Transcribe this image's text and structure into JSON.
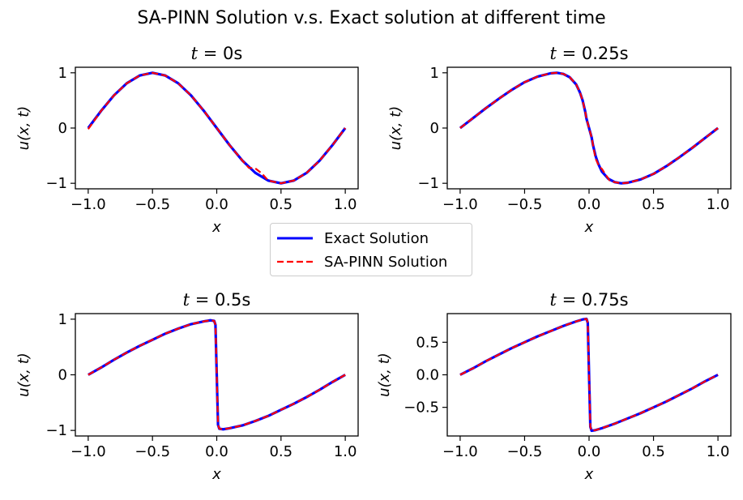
{
  "figure": {
    "suptitle": "SA-PINN Solution v.s. Exact solution at different time",
    "legend": {
      "placement": "center",
      "entries": [
        {
          "label": "Exact Solution",
          "color": "#0000ff",
          "style": "solid"
        },
        {
          "label": "SA-PINN Solution",
          "color": "#ff0000",
          "style": "dashed"
        }
      ]
    }
  },
  "chart_data": [
    {
      "type": "line",
      "title_prefix": "t = ",
      "title_value": "0s",
      "xlabel": "x",
      "ylabel": "u(x, t)",
      "xlim": [
        -1.1,
        1.1
      ],
      "ylim": [
        -1.1,
        1.1
      ],
      "xticks": [
        -1.0,
        -0.5,
        0.0,
        0.5,
        1.0
      ],
      "xtick_labels": [
        "−1.0",
        "−0.5",
        "0.0",
        "0.5",
        "1.0"
      ],
      "yticks": [
        -1,
        0,
        1
      ],
      "ytick_labels": [
        "−1",
        "0",
        "1"
      ],
      "series": [
        {
          "name": "Exact Solution",
          "color": "#0000ff",
          "x": [
            -1.0,
            -0.9,
            -0.8,
            -0.7,
            -0.6,
            -0.5,
            -0.4,
            -0.3,
            -0.2,
            -0.1,
            0.0,
            0.1,
            0.2,
            0.3,
            0.4,
            0.5,
            0.6,
            0.7,
            0.8,
            0.9,
            1.0
          ],
          "y": [
            0.0,
            0.31,
            0.59,
            0.81,
            0.95,
            1.0,
            0.95,
            0.81,
            0.59,
            0.31,
            0.0,
            -0.31,
            -0.59,
            -0.81,
            -0.95,
            -1.0,
            -0.95,
            -0.81,
            -0.59,
            -0.31,
            0.0
          ]
        },
        {
          "name": "SA-PINN Solution",
          "color": "#ff0000",
          "x": [
            -1.0,
            -0.9,
            -0.8,
            -0.7,
            -0.6,
            -0.5,
            -0.4,
            -0.3,
            -0.2,
            -0.1,
            0.0,
            0.1,
            0.2,
            0.25,
            0.3,
            0.35,
            0.4,
            0.5,
            0.6,
            0.7,
            0.8,
            0.9,
            1.0
          ],
          "y": [
            -0.02,
            0.31,
            0.59,
            0.81,
            0.95,
            1.0,
            0.95,
            0.81,
            0.59,
            0.31,
            0.0,
            -0.31,
            -0.59,
            -0.72,
            -0.73,
            -0.82,
            -0.95,
            -1.0,
            -0.95,
            -0.81,
            -0.59,
            -0.31,
            0.0
          ]
        }
      ]
    },
    {
      "type": "line",
      "title_prefix": "t = ",
      "title_value": "0.25s",
      "xlabel": "x",
      "ylabel": "u(x, t)",
      "xlim": [
        -1.1,
        1.1
      ],
      "ylim": [
        -1.1,
        1.1
      ],
      "xticks": [
        -1.0,
        -0.5,
        0.0,
        0.5,
        1.0
      ],
      "xtick_labels": [
        "−1.0",
        "−0.5",
        "0.0",
        "0.5",
        "1.0"
      ],
      "yticks": [
        -1,
        0,
        1
      ],
      "ytick_labels": [
        "−1",
        "0",
        "1"
      ],
      "series": [
        {
          "name": "Exact Solution",
          "color": "#0000ff",
          "x": [
            -1.0,
            -0.9,
            -0.8,
            -0.7,
            -0.6,
            -0.5,
            -0.4,
            -0.3,
            -0.25,
            -0.2,
            -0.15,
            -0.1,
            -0.07,
            -0.05,
            -0.03,
            -0.02,
            0.0,
            0.02,
            0.03,
            0.05,
            0.07,
            0.1,
            0.15,
            0.2,
            0.25,
            0.3,
            0.4,
            0.5,
            0.6,
            0.7,
            0.8,
            0.9,
            1.0
          ],
          "y": [
            0.0,
            0.18,
            0.36,
            0.53,
            0.69,
            0.83,
            0.93,
            0.99,
            1.0,
            0.98,
            0.92,
            0.79,
            0.64,
            0.5,
            0.3,
            0.17,
            0.0,
            -0.17,
            -0.3,
            -0.5,
            -0.64,
            -0.79,
            -0.92,
            -0.98,
            -1.0,
            -0.99,
            -0.93,
            -0.83,
            -0.69,
            -0.53,
            -0.36,
            -0.18,
            0.0
          ]
        },
        {
          "name": "SA-PINN Solution",
          "color": "#ff0000",
          "x": [
            -1.0,
            -0.9,
            -0.8,
            -0.7,
            -0.6,
            -0.5,
            -0.4,
            -0.3,
            -0.25,
            -0.2,
            -0.15,
            -0.1,
            -0.07,
            -0.05,
            -0.03,
            -0.02,
            0.0,
            0.02,
            0.03,
            0.05,
            0.08,
            0.1,
            0.13,
            0.16,
            0.2,
            0.25,
            0.3,
            0.4,
            0.5,
            0.6,
            0.7,
            0.8,
            0.9,
            1.0
          ],
          "y": [
            0.0,
            0.18,
            0.36,
            0.53,
            0.69,
            0.83,
            0.93,
            0.99,
            1.0,
            0.98,
            0.92,
            0.79,
            0.64,
            0.5,
            0.3,
            0.17,
            0.0,
            -0.17,
            -0.3,
            -0.55,
            -0.7,
            -0.74,
            -0.85,
            -0.95,
            -0.98,
            -1.0,
            -0.99,
            -0.93,
            -0.83,
            -0.69,
            -0.53,
            -0.36,
            -0.18,
            0.0
          ]
        }
      ]
    },
    {
      "type": "line",
      "title_prefix": "t = ",
      "title_value": "0.5s",
      "xlabel": "x",
      "ylabel": "u(x, t)",
      "xlim": [
        -1.1,
        1.1
      ],
      "ylim": [
        -1.1,
        1.1
      ],
      "xticks": [
        -1.0,
        -0.5,
        0.0,
        0.5,
        1.0
      ],
      "xtick_labels": [
        "−1.0",
        "−0.5",
        "0.0",
        "0.5",
        "1.0"
      ],
      "yticks": [
        -1,
        0,
        1
      ],
      "ytick_labels": [
        "−1",
        "0",
        "1"
      ],
      "series": [
        {
          "name": "Exact Solution",
          "color": "#0000ff",
          "x": [
            -1.0,
            -0.9,
            -0.8,
            -0.7,
            -0.6,
            -0.5,
            -0.4,
            -0.3,
            -0.2,
            -0.1,
            -0.05,
            -0.02,
            -0.01,
            0.0,
            0.01,
            0.02,
            0.05,
            0.1,
            0.2,
            0.3,
            0.4,
            0.5,
            0.6,
            0.7,
            0.8,
            0.9,
            1.0
          ],
          "y": [
            0.0,
            0.13,
            0.27,
            0.4,
            0.52,
            0.63,
            0.74,
            0.83,
            0.91,
            0.96,
            0.98,
            0.97,
            0.9,
            0.0,
            -0.9,
            -0.97,
            -0.98,
            -0.96,
            -0.91,
            -0.83,
            -0.74,
            -0.63,
            -0.52,
            -0.4,
            -0.27,
            -0.13,
            0.0
          ]
        },
        {
          "name": "SA-PINN Solution",
          "color": "#ff0000",
          "x": [
            -1.0,
            -0.9,
            -0.8,
            -0.7,
            -0.6,
            -0.5,
            -0.4,
            -0.3,
            -0.2,
            -0.1,
            -0.05,
            -0.02,
            -0.01,
            0.0,
            0.01,
            0.02,
            0.05,
            0.1,
            0.2,
            0.3,
            0.4,
            0.5,
            0.6,
            0.7,
            0.8,
            0.9,
            1.0
          ],
          "y": [
            0.0,
            0.13,
            0.27,
            0.4,
            0.52,
            0.63,
            0.74,
            0.83,
            0.91,
            0.96,
            0.98,
            0.97,
            0.9,
            0.0,
            -0.9,
            -0.97,
            -0.98,
            -0.96,
            -0.91,
            -0.83,
            -0.74,
            -0.63,
            -0.52,
            -0.4,
            -0.27,
            -0.13,
            0.0
          ]
        }
      ]
    },
    {
      "type": "line",
      "title_prefix": "t = ",
      "title_value": "0.75s",
      "xlabel": "x",
      "ylabel": "u(x, t)",
      "xlim": [
        -1.1,
        1.1
      ],
      "ylim": [
        -0.94,
        0.94
      ],
      "xticks": [
        -1.0,
        -0.5,
        0.0,
        0.5,
        1.0
      ],
      "xtick_labels": [
        "−1.0",
        "−0.5",
        "0.0",
        "0.5",
        "1.0"
      ],
      "yticks": [
        -0.5,
        0.0,
        0.5
      ],
      "ytick_labels": [
        "−0.5",
        "0.0",
        "0.5"
      ],
      "series": [
        {
          "name": "Exact Solution",
          "color": "#0000ff",
          "x": [
            -1.0,
            -0.9,
            -0.8,
            -0.7,
            -0.6,
            -0.5,
            -0.4,
            -0.3,
            -0.2,
            -0.1,
            -0.05,
            -0.02,
            -0.01,
            0.0,
            0.01,
            0.02,
            0.05,
            0.1,
            0.2,
            0.3,
            0.4,
            0.5,
            0.6,
            0.7,
            0.8,
            0.9,
            1.0
          ],
          "y": [
            0.0,
            0.1,
            0.21,
            0.31,
            0.41,
            0.5,
            0.59,
            0.67,
            0.75,
            0.82,
            0.85,
            0.86,
            0.8,
            0.0,
            -0.8,
            -0.86,
            -0.85,
            -0.82,
            -0.75,
            -0.67,
            -0.59,
            -0.5,
            -0.41,
            -0.31,
            -0.21,
            -0.1,
            0.0
          ]
        },
        {
          "name": "SA-PINN Solution",
          "color": "#ff0000",
          "x": [
            -1.0,
            -0.9,
            -0.8,
            -0.7,
            -0.6,
            -0.5,
            -0.4,
            -0.3,
            -0.2,
            -0.1,
            -0.05,
            -0.02,
            -0.01,
            0.0,
            0.01,
            0.02,
            0.05,
            0.1,
            0.2,
            0.3,
            0.4,
            0.5,
            0.6,
            0.7,
            0.8,
            0.9,
            1.0
          ],
          "y": [
            0.0,
            0.1,
            0.21,
            0.31,
            0.41,
            0.5,
            0.59,
            0.67,
            0.75,
            0.82,
            0.85,
            0.86,
            0.8,
            0.0,
            -0.8,
            -0.86,
            -0.85,
            -0.82,
            -0.75,
            -0.67,
            -0.59,
            -0.5,
            -0.41,
            -0.31,
            -0.21,
            -0.1,
            0.0
          ]
        }
      ]
    }
  ]
}
